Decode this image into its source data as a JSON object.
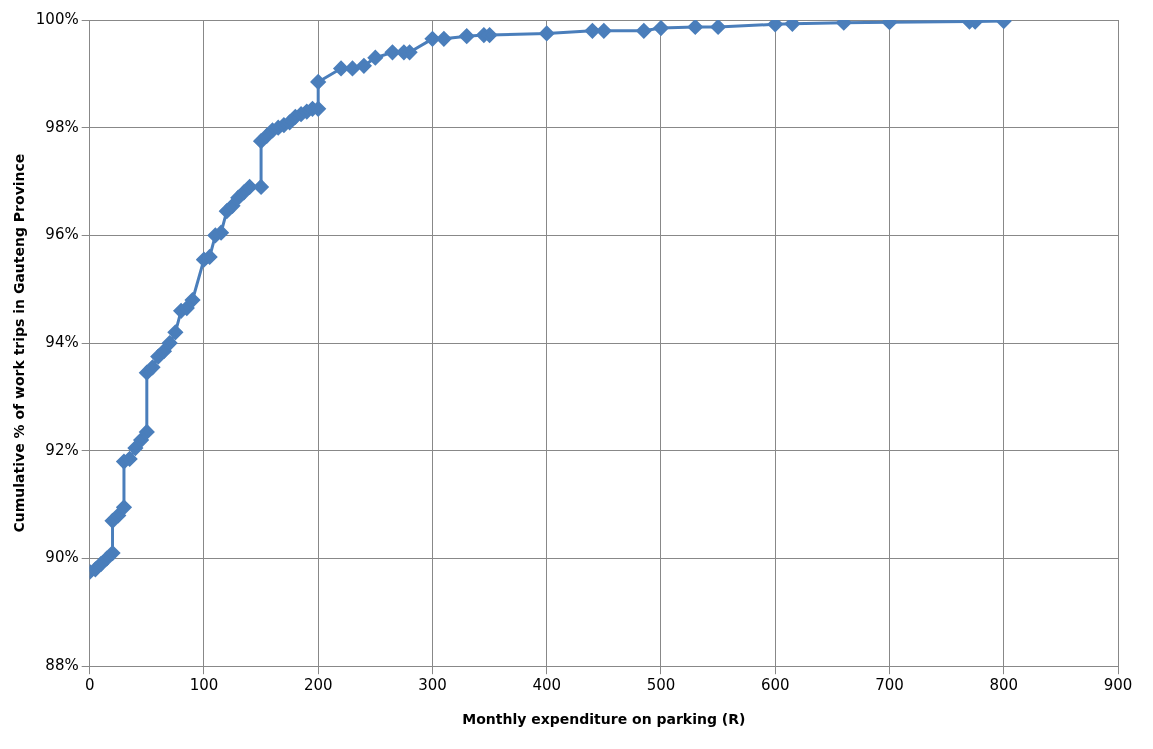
{
  "chart_data": {
    "type": "line",
    "xlabel": "Monthly expenditure on parking (R)",
    "ylabel": "Cumulative % of work trips in Gauteng Province",
    "series": [
      {
        "color": "#4a7ebb",
        "x": [
          0,
          5,
          10,
          15,
          20,
          20,
          25,
          30,
          30,
          35,
          40,
          45,
          50,
          50,
          55,
          60,
          65,
          70,
          75,
          80,
          85,
          90,
          100,
          105,
          110,
          115,
          120,
          125,
          130,
          135,
          140,
          150,
          150,
          155,
          160,
          165,
          170,
          175,
          180,
          185,
          190,
          195,
          200,
          200,
          220,
          230,
          240,
          250,
          265,
          275,
          280,
          300,
          310,
          330,
          345,
          350,
          400,
          440,
          450,
          485,
          500,
          530,
          550,
          600,
          615,
          660,
          700,
          770,
          775,
          800
        ],
        "values": [
          89.75,
          89.8,
          89.9,
          90.0,
          90.1,
          90.7,
          90.8,
          90.95,
          91.8,
          91.85,
          92.05,
          92.2,
          92.35,
          93.45,
          93.55,
          93.75,
          93.85,
          94.0,
          94.2,
          94.6,
          94.65,
          94.8,
          95.55,
          95.6,
          96.0,
          96.05,
          96.45,
          96.55,
          96.7,
          96.8,
          96.9,
          96.9,
          97.75,
          97.85,
          97.95,
          98.0,
          98.05,
          98.1,
          98.2,
          98.25,
          98.3,
          98.35,
          98.35,
          98.85,
          99.1,
          99.1,
          99.15,
          99.3,
          99.4,
          99.4,
          99.4,
          99.65,
          99.65,
          99.7,
          99.72,
          99.72,
          99.75,
          99.8,
          99.8,
          99.8,
          99.85,
          99.87,
          99.87,
          99.92,
          99.93,
          99.95,
          99.96,
          99.97,
          99.97,
          99.98
        ]
      }
    ],
    "xlim": [
      0,
      900
    ],
    "xticks": [
      0,
      100,
      200,
      300,
      400,
      500,
      600,
      700,
      800,
      900
    ],
    "ylim": [
      88,
      100
    ],
    "yticks": [
      {
        "value": 88,
        "label": "88%"
      },
      {
        "value": 90,
        "label": "90%"
      },
      {
        "value": 92,
        "label": "92%"
      },
      {
        "value": 94,
        "label": "94%"
      },
      {
        "value": 96,
        "label": "96%"
      },
      {
        "value": 98,
        "label": "98%"
      },
      {
        "value": 100,
        "label": "100%"
      }
    ],
    "grid": true,
    "legend": false,
    "marker": "diamond",
    "line_style": "solid"
  }
}
